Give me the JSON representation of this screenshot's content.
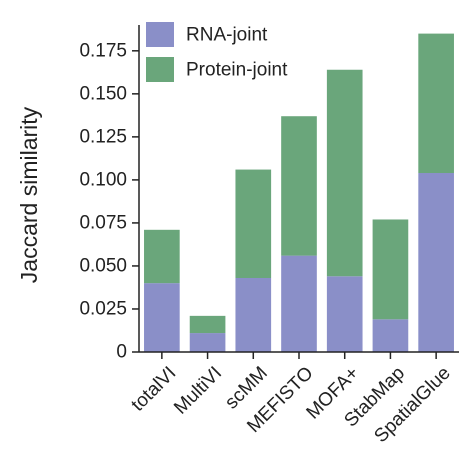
{
  "chart_data": {
    "type": "bar",
    "stacked": true,
    "categories": [
      "totalVI",
      "MultiVI",
      "scMM",
      "MEFISTO",
      "MOFA+",
      "StabMap",
      "SpatialGlue"
    ],
    "series": [
      {
        "name": "RNA-joint",
        "color": "#8a8fc8",
        "values": [
          0.04,
          0.011,
          0.043,
          0.056,
          0.044,
          0.019,
          0.104
        ]
      },
      {
        "name": "Protein-joint",
        "color": "#6aa67b",
        "values": [
          0.031,
          0.01,
          0.063,
          0.081,
          0.12,
          0.058,
          0.081
        ]
      }
    ],
    "title": "",
    "xlabel": "",
    "ylabel": "Jaccard similarity",
    "ylim": [
      0,
      0.19
    ],
    "yticks": [
      0,
      0.025,
      0.05,
      0.075,
      0.1,
      0.125,
      0.15,
      0.175
    ],
    "ytick_labels": [
      "0",
      "0.025",
      "0.050",
      "0.075",
      "0.100",
      "0.125",
      "0.150",
      "0.175"
    ],
    "legend_position": "top-left",
    "grid": false
  }
}
